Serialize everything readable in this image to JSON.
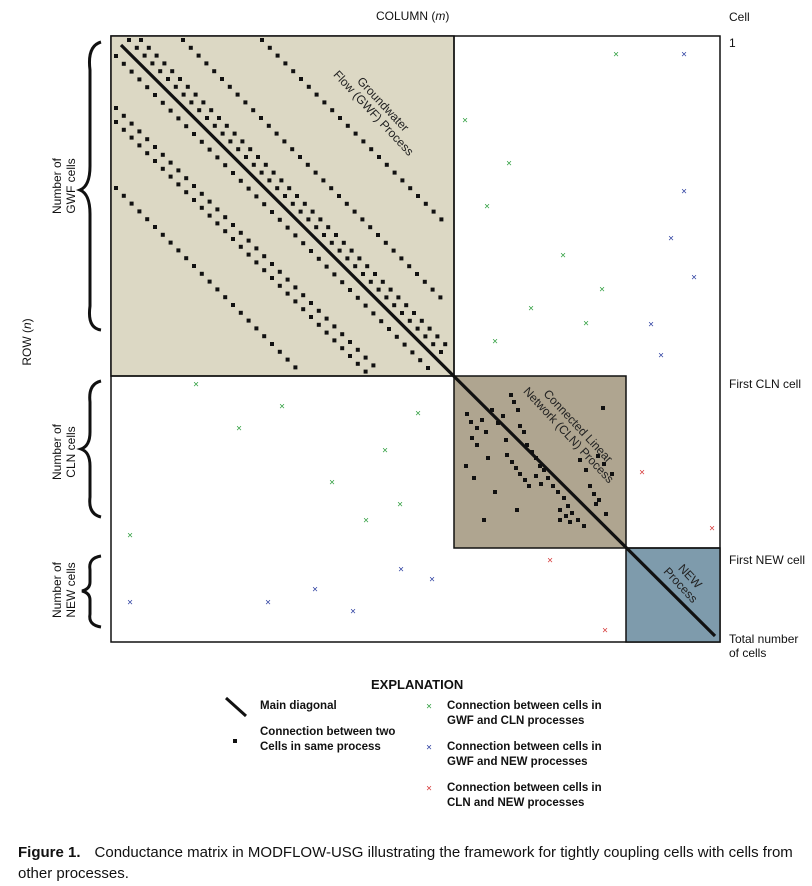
{
  "axes": {
    "column_label": "COLUMN (",
    "column_var": "m",
    "column_close": ")",
    "row_label": "ROW (",
    "row_var": "n",
    "row_close": ")",
    "cell_header": "Cell",
    "cell_1": "1",
    "first_cln": "First CLN cell",
    "first_new": "First NEW cell",
    "total_line1": "Total number",
    "total_line2": "of cells"
  },
  "groups": {
    "gwf": {
      "line1": "Number of",
      "line2": "GWF cells"
    },
    "cln": {
      "line1": "Number of",
      "line2": "CLN cells"
    },
    "new": {
      "line1": "Number of",
      "line2": "NEW cells"
    }
  },
  "regions": {
    "gwf": {
      "line1": "Groundwater",
      "line2": "Flow (GWF) Process"
    },
    "cln": {
      "line1": "Connected Linear",
      "line2": "Network (CLN) Process"
    },
    "new": {
      "line1": "NEW",
      "line2": "Process"
    }
  },
  "colors": {
    "gwf_fill": "#dcd8c4",
    "cln_fill": "#afa590",
    "new_fill": "#7e9bac",
    "green": "#2e9e3e",
    "blue": "#2b3ea0",
    "red": "#d63838"
  },
  "explanation": {
    "title": "EXPLANATION",
    "main_diagonal": "Main diagonal",
    "same_process_1": "Connection between two",
    "same_process_2": "Cells in same process",
    "gwf_cln_1": "Connection between cells in",
    "gwf_cln_2": "GWF and CLN processes",
    "gwf_new_1": "Connection between cells in",
    "gwf_new_2": "GWF and NEW processes",
    "cln_new_1": "Connection between cells in",
    "cln_new_2": "CLN and NEW processes"
  },
  "caption": {
    "label": "Figure 1.",
    "text": "Conductance matrix in MODFLOW-USG illustrating the framework for tightly coupling cells with cells from other processes."
  }
}
